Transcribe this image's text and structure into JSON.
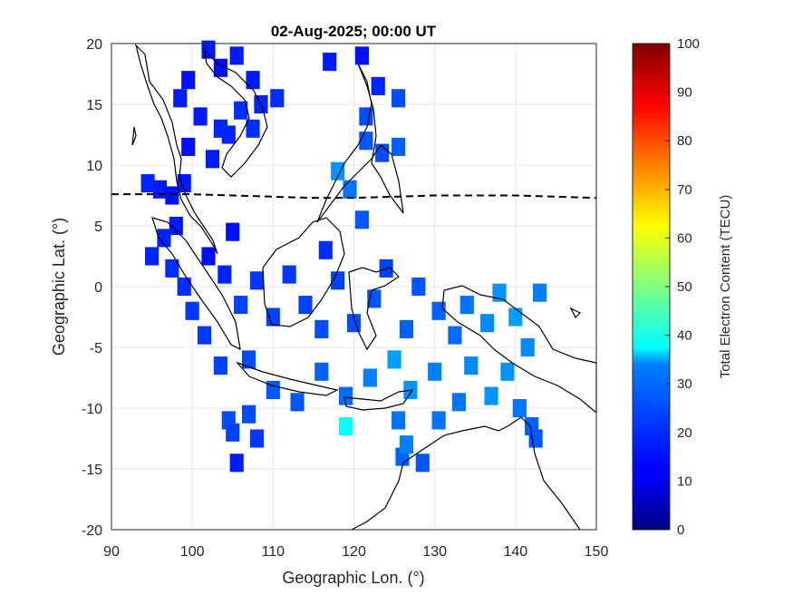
{
  "chart_data": {
    "type": "heatmap",
    "title": "02-Aug-2025; 00:00 UT",
    "xlabel": "Geographic Lon. (°)",
    "ylabel": "Geographic Lat. (°)",
    "xlim": [
      90,
      150
    ],
    "ylim": [
      -20,
      20
    ],
    "xticks": [
      "90",
      "100",
      "110",
      "120",
      "130",
      "140",
      "150"
    ],
    "yticks": [
      "20",
      "15",
      "10",
      "5",
      "0",
      "-5",
      "-10",
      "-15",
      "-20"
    ],
    "grid": true,
    "colorbar": {
      "label": "Total Electron Content (TECU)",
      "range": [
        0,
        100
      ],
      "ticks": [
        "100",
        "90",
        "80",
        "70",
        "60",
        "50",
        "40",
        "30",
        "20",
        "10",
        "0"
      ],
      "colormap": "jet"
    },
    "magnetic_equator": [
      [
        90,
        7.6
      ],
      [
        95,
        7.6
      ],
      [
        100,
        7.6
      ],
      [
        105,
        7.5
      ],
      [
        110,
        7.4
      ],
      [
        115,
        7.3
      ],
      [
        120,
        7.3
      ],
      [
        125,
        7.4
      ],
      [
        130,
        7.5
      ],
      [
        135,
        7.5
      ],
      [
        140,
        7.5
      ],
      [
        145,
        7.4
      ],
      [
        150,
        7.3
      ]
    ],
    "tec_cells": [
      {
        "lon": 94.5,
        "lat": 8.5,
        "tec": 16
      },
      {
        "lon": 96.0,
        "lat": 8.0,
        "tec": 15
      },
      {
        "lon": 97.5,
        "lat": 7.5,
        "tec": 14
      },
      {
        "lon": 99.0,
        "lat": 8.5,
        "tec": 15
      },
      {
        "lon": 98.0,
        "lat": 5.0,
        "tec": 15
      },
      {
        "lon": 96.5,
        "lat": 4.0,
        "tec": 16
      },
      {
        "lon": 95.0,
        "lat": 2.5,
        "tec": 16
      },
      {
        "lon": 97.5,
        "lat": 1.5,
        "tec": 17
      },
      {
        "lon": 99.0,
        "lat": 0.0,
        "tec": 17
      },
      {
        "lon": 100.0,
        "lat": -2.0,
        "tec": 18
      },
      {
        "lon": 101.5,
        "lat": -4.0,
        "tec": 18
      },
      {
        "lon": 103.5,
        "lat": -6.5,
        "tec": 19
      },
      {
        "lon": 102.0,
        "lat": 2.5,
        "tec": 14
      },
      {
        "lon": 104.0,
        "lat": 1.0,
        "tec": 16
      },
      {
        "lon": 106.0,
        "lat": -1.5,
        "tec": 19
      },
      {
        "lon": 105.0,
        "lat": 4.5,
        "tec": 14
      },
      {
        "lon": 108.0,
        "lat": 0.5,
        "tec": 18
      },
      {
        "lon": 110.0,
        "lat": -2.5,
        "tec": 19
      },
      {
        "lon": 112.0,
        "lat": 1.0,
        "tec": 18
      },
      {
        "lon": 114.0,
        "lat": -1.5,
        "tec": 19
      },
      {
        "lon": 116.0,
        "lat": -3.5,
        "tec": 20
      },
      {
        "lon": 118.0,
        "lat": 0.5,
        "tec": 19
      },
      {
        "lon": 116.5,
        "lat": 3.0,
        "tec": 17
      },
      {
        "lon": 120.0,
        "lat": -3.0,
        "tec": 20
      },
      {
        "lon": 122.5,
        "lat": -1.0,
        "tec": 21
      },
      {
        "lon": 124.0,
        "lat": 1.5,
        "tec": 19
      },
      {
        "lon": 126.5,
        "lat": -3.5,
        "tec": 22
      },
      {
        "lon": 128.0,
        "lat": 0.0,
        "tec": 21
      },
      {
        "lon": 130.5,
        "lat": -2.0,
        "tec": 22
      },
      {
        "lon": 132.5,
        "lat": -4.0,
        "tec": 23
      },
      {
        "lon": 134.0,
        "lat": -1.5,
        "tec": 24
      },
      {
        "lon": 136.5,
        "lat": -3.0,
        "tec": 26
      },
      {
        "lon": 138.0,
        "lat": -0.5,
        "tec": 27
      },
      {
        "lon": 140.0,
        "lat": -2.5,
        "tec": 28
      },
      {
        "lon": 141.5,
        "lat": -5.0,
        "tec": 26
      },
      {
        "lon": 139.0,
        "lat": -7.0,
        "tec": 27
      },
      {
        "lon": 143.0,
        "lat": -0.5,
        "tec": 25
      },
      {
        "lon": 107.0,
        "lat": -6.0,
        "tec": 20
      },
      {
        "lon": 110.0,
        "lat": -8.5,
        "tec": 21
      },
      {
        "lon": 113.0,
        "lat": -9.5,
        "tec": 21
      },
      {
        "lon": 116.0,
        "lat": -7.0,
        "tec": 22
      },
      {
        "lon": 119.0,
        "lat": -9.0,
        "tec": 23
      },
      {
        "lon": 119.0,
        "lat": -11.5,
        "tec": 38
      },
      {
        "lon": 122.0,
        "lat": -7.5,
        "tec": 25
      },
      {
        "lon": 125.0,
        "lat": -6.0,
        "tec": 28
      },
      {
        "lon": 127.0,
        "lat": -8.5,
        "tec": 27
      },
      {
        "lon": 125.5,
        "lat": -11.0,
        "tec": 24
      },
      {
        "lon": 130.0,
        "lat": -7.0,
        "tec": 25
      },
      {
        "lon": 133.0,
        "lat": -9.5,
        "tec": 24
      },
      {
        "lon": 134.5,
        "lat": -6.5,
        "tec": 26
      },
      {
        "lon": 137.0,
        "lat": -9.0,
        "tec": 27
      },
      {
        "lon": 140.5,
        "lat": -10.0,
        "tec": 24
      },
      {
        "lon": 104.5,
        "lat": -11.0,
        "tec": 20
      },
      {
        "lon": 107.0,
        "lat": -10.5,
        "tec": 20
      },
      {
        "lon": 126.0,
        "lat": -14.0,
        "tec": 22
      },
      {
        "lon": 128.5,
        "lat": -14.5,
        "tec": 21
      },
      {
        "lon": 126.5,
        "lat": -13.0,
        "tec": 25
      },
      {
        "lon": 130.5,
        "lat": -11.0,
        "tec": 24
      },
      {
        "lon": 142.0,
        "lat": -11.5,
        "tec": 22
      },
      {
        "lon": 142.5,
        "lat": -12.5,
        "tec": 21
      },
      {
        "lon": 105.5,
        "lat": -14.5,
        "tec": 15
      },
      {
        "lon": 108.0,
        "lat": -12.5,
        "tec": 18
      },
      {
        "lon": 105.0,
        "lat": -12.0,
        "tec": 19
      },
      {
        "lon": 102.0,
        "lat": 19.5,
        "tec": 15
      },
      {
        "lon": 103.5,
        "lat": 18.0,
        "tec": 14
      },
      {
        "lon": 105.5,
        "lat": 19.0,
        "tec": 15
      },
      {
        "lon": 107.5,
        "lat": 17.0,
        "tec": 15
      },
      {
        "lon": 99.5,
        "lat": 17.0,
        "tec": 14
      },
      {
        "lon": 98.5,
        "lat": 15.5,
        "tec": 15
      },
      {
        "lon": 101.0,
        "lat": 14.0,
        "tec": 15
      },
      {
        "lon": 103.5,
        "lat": 13.0,
        "tec": 16
      },
      {
        "lon": 106.0,
        "lat": 14.5,
        "tec": 17
      },
      {
        "lon": 108.5,
        "lat": 15.0,
        "tec": 16
      },
      {
        "lon": 110.5,
        "lat": 15.5,
        "tec": 17
      },
      {
        "lon": 99.5,
        "lat": 11.5,
        "tec": 14
      },
      {
        "lon": 102.5,
        "lat": 10.5,
        "tec": 15
      },
      {
        "lon": 104.5,
        "lat": 12.5,
        "tec": 16
      },
      {
        "lon": 107.5,
        "lat": 13.0,
        "tec": 17
      },
      {
        "lon": 117.0,
        "lat": 18.5,
        "tec": 15
      },
      {
        "lon": 121.0,
        "lat": 19.0,
        "tec": 14
      },
      {
        "lon": 121.5,
        "lat": 14.0,
        "tec": 20
      },
      {
        "lon": 123.0,
        "lat": 16.5,
        "tec": 16
      },
      {
        "lon": 125.5,
        "lat": 15.5,
        "tec": 20
      },
      {
        "lon": 123.5,
        "lat": 11.0,
        "tec": 20
      },
      {
        "lon": 125.5,
        "lat": 11.5,
        "tec": 22
      },
      {
        "lon": 118.0,
        "lat": 9.5,
        "tec": 27
      },
      {
        "lon": 119.5,
        "lat": 8.0,
        "tec": 24
      },
      {
        "lon": 121.0,
        "lat": 5.5,
        "tec": 21
      },
      {
        "lon": 121.5,
        "lat": 12.0,
        "tec": 21
      }
    ]
  }
}
